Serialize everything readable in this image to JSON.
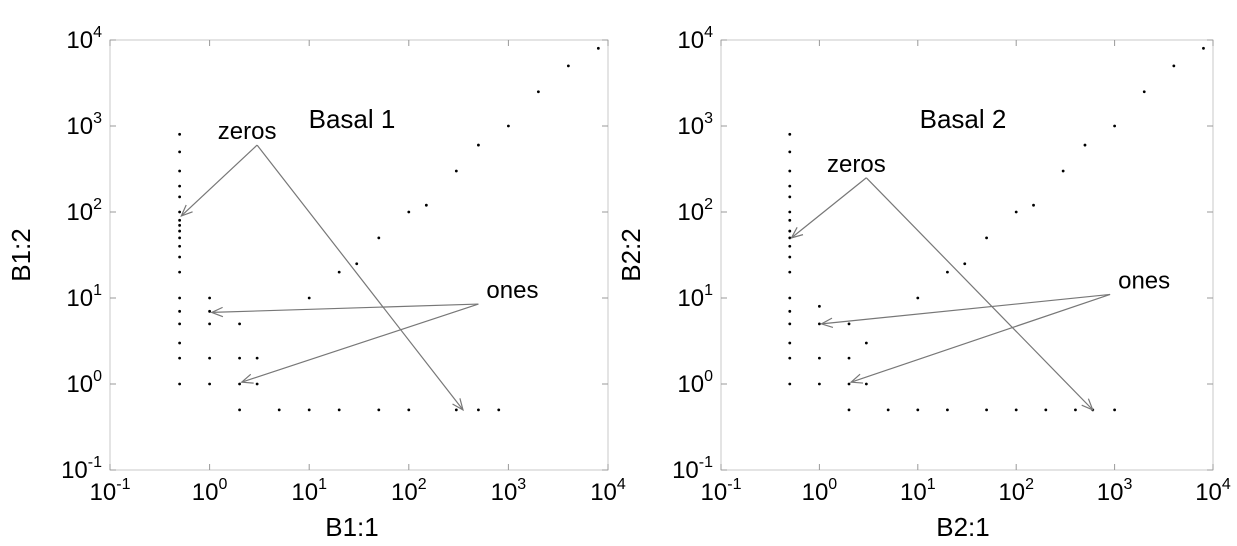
{
  "chart_data": [
    {
      "type": "scatter",
      "title": "Basal 1",
      "xlabel": "B1:1",
      "ylabel": "B1:2",
      "xscale": "log",
      "yscale": "log",
      "xlim": [
        0.1,
        10000
      ],
      "ylim": [
        0.1,
        10000
      ],
      "grid": false,
      "ticks": [
        {
          "base": "10",
          "exp": "-1"
        },
        {
          "base": "10",
          "exp": "0"
        },
        {
          "base": "10",
          "exp": "1"
        },
        {
          "base": "10",
          "exp": "2"
        },
        {
          "base": "10",
          "exp": "3"
        },
        {
          "base": "10",
          "exp": "4"
        }
      ],
      "annotations": [
        {
          "text": "zeros",
          "anchor": [
            3,
            600
          ],
          "targets": [
            [
              0.52,
              90
            ],
            [
              350,
              0.5
            ]
          ]
        },
        {
          "text": "ones",
          "anchor": [
            500,
            8.5
          ],
          "targets": [
            [
              1.05,
              6.8
            ],
            [
              2.1,
              1.05
            ]
          ]
        }
      ],
      "series": [
        {
          "values": [
            [
              0.5,
              1
            ],
            [
              0.5,
              2
            ],
            [
              0.5,
              3
            ],
            [
              0.5,
              5
            ],
            [
              0.5,
              7
            ],
            [
              0.5,
              10
            ],
            [
              0.5,
              20
            ],
            [
              0.5,
              30
            ],
            [
              0.5,
              40
            ],
            [
              0.5,
              50
            ],
            [
              0.5,
              60
            ],
            [
              0.5,
              70
            ],
            [
              0.5,
              80
            ],
            [
              0.5,
              100
            ],
            [
              0.5,
              150
            ],
            [
              0.5,
              200
            ],
            [
              0.5,
              300
            ],
            [
              0.5,
              500
            ],
            [
              0.5,
              800
            ],
            [
              1,
              1
            ],
            [
              1,
              2
            ],
            [
              1,
              5
            ],
            [
              1,
              7
            ],
            [
              1,
              10
            ],
            [
              2,
              0.5
            ],
            [
              2,
              1
            ],
            [
              2,
              2
            ],
            [
              2,
              5
            ],
            [
              3,
              1
            ],
            [
              3,
              2
            ],
            [
              5,
              0.5
            ],
            [
              10,
              0.5
            ],
            [
              20,
              0.5
            ],
            [
              50,
              0.5
            ],
            [
              100,
              0.5
            ],
            [
              300,
              0.5
            ],
            [
              500,
              0.5
            ],
            [
              800,
              0.5
            ],
            [
              10,
              10
            ],
            [
              20,
              20
            ],
            [
              30,
              25
            ],
            [
              50,
              50
            ],
            [
              100,
              100
            ],
            [
              150,
              120
            ],
            [
              300,
              300
            ],
            [
              500,
              600
            ],
            [
              1000,
              1000
            ],
            [
              2000,
              2500
            ],
            [
              4000,
              5000
            ],
            [
              8000,
              8000
            ]
          ]
        }
      ]
    },
    {
      "type": "scatter",
      "title": "Basal 2",
      "xlabel": "B2:1",
      "ylabel": "B2:2",
      "xscale": "log",
      "yscale": "log",
      "xlim": [
        0.1,
        10000
      ],
      "ylim": [
        0.1,
        10000
      ],
      "grid": false,
      "ticks": [
        {
          "base": "10",
          "exp": "-1"
        },
        {
          "base": "10",
          "exp": "0"
        },
        {
          "base": "10",
          "exp": "1"
        },
        {
          "base": "10",
          "exp": "2"
        },
        {
          "base": "10",
          "exp": "3"
        },
        {
          "base": "10",
          "exp": "4"
        }
      ],
      "annotations": [
        {
          "text": "zeros",
          "anchor": [
            3,
            250
          ],
          "targets": [
            [
              0.52,
              50
            ],
            [
              600,
              0.5
            ]
          ]
        },
        {
          "text": "ones",
          "anchor": [
            900,
            11
          ],
          "targets": [
            [
              1.05,
              5
            ],
            [
              2.1,
              1.05
            ]
          ]
        }
      ],
      "series": [
        {
          "values": [
            [
              0.5,
              1
            ],
            [
              0.5,
              2
            ],
            [
              0.5,
              3
            ],
            [
              0.5,
              5
            ],
            [
              0.5,
              7
            ],
            [
              0.5,
              10
            ],
            [
              0.5,
              20
            ],
            [
              0.5,
              30
            ],
            [
              0.5,
              40
            ],
            [
              0.5,
              50
            ],
            [
              0.5,
              60
            ],
            [
              0.5,
              80
            ],
            [
              0.5,
              100
            ],
            [
              0.5,
              150
            ],
            [
              0.5,
              200
            ],
            [
              0.5,
              300
            ],
            [
              0.5,
              500
            ],
            [
              0.5,
              800
            ],
            [
              1,
              1
            ],
            [
              1,
              2
            ],
            [
              1,
              5
            ],
            [
              1,
              8
            ],
            [
              2,
              0.5
            ],
            [
              2,
              1
            ],
            [
              2,
              2
            ],
            [
              2,
              5
            ],
            [
              3,
              1
            ],
            [
              3,
              3
            ],
            [
              5,
              0.5
            ],
            [
              10,
              0.5
            ],
            [
              20,
              0.5
            ],
            [
              50,
              0.5
            ],
            [
              100,
              0.5
            ],
            [
              200,
              0.5
            ],
            [
              400,
              0.5
            ],
            [
              600,
              0.5
            ],
            [
              1000,
              0.5
            ],
            [
              10,
              10
            ],
            [
              20,
              20
            ],
            [
              30,
              25
            ],
            [
              50,
              50
            ],
            [
              100,
              100
            ],
            [
              150,
              120
            ],
            [
              300,
              300
            ],
            [
              500,
              600
            ],
            [
              1000,
              1000
            ],
            [
              2000,
              2500
            ],
            [
              4000,
              5000
            ],
            [
              8000,
              8000
            ]
          ]
        }
      ]
    }
  ]
}
